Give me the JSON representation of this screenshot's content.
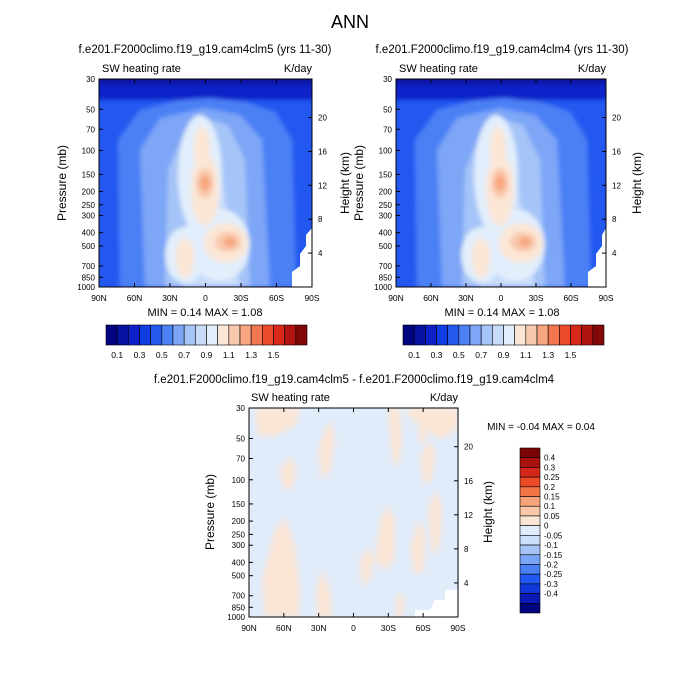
{
  "page_title": "ANN",
  "colors": {
    "abs_palette": [
      "#02037e",
      "#0712a0",
      "#0c22c8",
      "#0f3ee3",
      "#2459f0",
      "#4c80f5",
      "#7da6f6",
      "#a5c4f8",
      "#c8dcfa",
      "#e2eefb",
      "#fbe6d6",
      "#f9c9ad",
      "#f7a67f",
      "#f2764f",
      "#eb4b2a",
      "#d9281a",
      "#b1140f",
      "#820707"
    ],
    "diff_palette": [
      "#02037e",
      "#0b1ab6",
      "#0f37d9",
      "#2158f1",
      "#4b7ff4",
      "#7aa4f5",
      "#a6c6f8",
      "#cde0fb",
      "#e1ecfb",
      "#fbe6d6",
      "#f9c8a9",
      "#f6a27a",
      "#f17547",
      "#ea4a26",
      "#d32819",
      "#a8120e",
      "#7a0505"
    ]
  },
  "chart_data": [
    {
      "type": "heatmap",
      "title": "f.e201.F2000climo.f19_g19.cam4clm5 (yrs 11-30)",
      "subtitle_left": "SW heating rate",
      "subtitle_right": "K/day",
      "ylabel": "Pressure (mb)",
      "ylabel_right": "Height (km)",
      "x_ticks": [
        "90N",
        "60N",
        "30N",
        "0",
        "30S",
        "60S",
        "90S"
      ],
      "y_ticks": [
        "30",
        "50",
        "70",
        "100",
        "150",
        "200",
        "250",
        "300",
        "400",
        "500",
        "700",
        "850",
        "1000"
      ],
      "y_ticks_right": [
        "20",
        "16",
        "12",
        "8",
        "4"
      ],
      "stats": "MIN =  0.14  MAX =   1.08",
      "colorbar_labels": [
        "0.1",
        "0.3",
        "0.5",
        "0.7",
        "0.9",
        "1.1",
        "1.3",
        "1.5"
      ],
      "min": 0.14,
      "max": 1.08
    },
    {
      "type": "heatmap",
      "title": "f.e201.F2000climo.f19_g19.cam4clm4 (yrs 11-30)",
      "subtitle_left": "SW heating rate",
      "subtitle_right": "K/day",
      "ylabel": "Pressure (mb)",
      "ylabel_right": "Height (km)",
      "x_ticks": [
        "90N",
        "60N",
        "30N",
        "0",
        "30S",
        "60S",
        "90S"
      ],
      "y_ticks": [
        "30",
        "50",
        "70",
        "100",
        "150",
        "200",
        "250",
        "300",
        "400",
        "500",
        "700",
        "850",
        "1000"
      ],
      "y_ticks_right": [
        "20",
        "16",
        "12",
        "8",
        "4"
      ],
      "stats": "MIN =  0.14  MAX =   1.08",
      "colorbar_labels": [
        "0.1",
        "0.3",
        "0.5",
        "0.7",
        "0.9",
        "1.1",
        "1.3",
        "1.5"
      ],
      "min": 0.14,
      "max": 1.08
    },
    {
      "type": "heatmap",
      "title": "f.e201.F2000climo.f19_g19.cam4clm5 - f.e201.F2000climo.f19_g19.cam4clm4",
      "subtitle_left": "SW heating rate",
      "subtitle_right": "K/day",
      "ylabel": "Pressure (mb)",
      "ylabel_right": "Height (km)",
      "x_ticks": [
        "90N",
        "60N",
        "30N",
        "0",
        "30S",
        "60S",
        "90S"
      ],
      "y_ticks": [
        "30",
        "50",
        "70",
        "100",
        "150",
        "200",
        "250",
        "300",
        "400",
        "500",
        "700",
        "850",
        "1000"
      ],
      "y_ticks_right": [
        "20",
        "16",
        "12",
        "8",
        "4"
      ],
      "stats": "MIN =  -0.04  MAX =   0.04",
      "colorbar_labels": [
        "0.4",
        "0.3",
        "0.25",
        "0.2",
        "0.15",
        "0.1",
        "0.05",
        "0",
        "-0.05",
        "-0.1",
        "-0.15",
        "-0.2",
        "-0.25",
        "-0.3",
        "-0.4"
      ],
      "min": -0.04,
      "max": 0.04
    }
  ]
}
